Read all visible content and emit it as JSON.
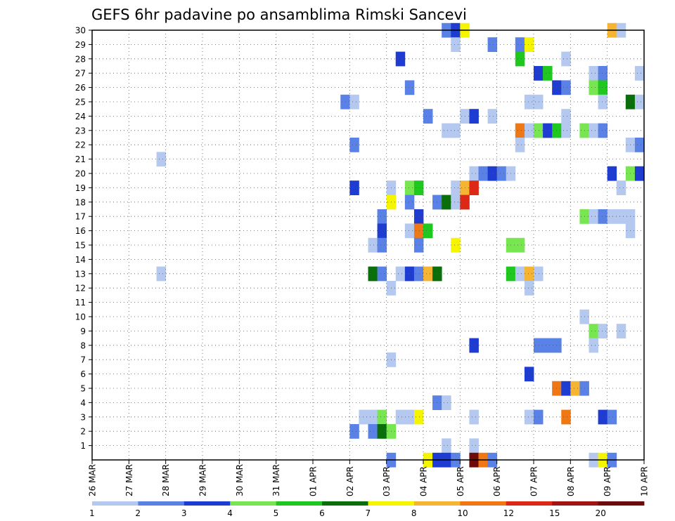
{
  "chart_data": {
    "type": "heatmap",
    "title": "GEFS 6hr padavine po ansamblima Rimski Sancevi",
    "xlabel": "",
    "ylabel": "",
    "x_tick_labels": [
      "26 MAR",
      "27 MAR",
      "28 MAR",
      "29 MAR",
      "30 MAR",
      "31 MAR",
      "01 APR",
      "02 APR",
      "03 APR",
      "04 APR",
      "05 APR",
      "06 APR",
      "07 APR",
      "08 APR",
      "09 APR",
      "10 APR"
    ],
    "y_tick_labels": [
      "1",
      "2",
      "3",
      "4",
      "5",
      "6",
      "7",
      "8",
      "9",
      "10",
      "11",
      "12",
      "13",
      "14",
      "15",
      "16",
      "17",
      "18",
      "19",
      "20",
      "21",
      "22",
      "23",
      "24",
      "25",
      "26",
      "27",
      "28",
      "29",
      "30"
    ],
    "x_range": [
      0,
      60
    ],
    "y_range": [
      0,
      30
    ],
    "x_unit": "6-hour steps from 26 MAR 00Z",
    "grid": true,
    "colorbar": {
      "tick_labels": [
        "1",
        "2",
        "3",
        "4",
        "5",
        "6",
        "7",
        "8",
        "10",
        "12",
        "15",
        "20"
      ],
      "colors": [
        "#b4c8f0",
        "#5a82e6",
        "#1e3cd2",
        "#78e650",
        "#1ec81e",
        "#0a6e0a",
        "#f5f500",
        "#f5b432",
        "#f07814",
        "#dc2814",
        "#a01414",
        "#6e0a0a"
      ]
    },
    "cells": [
      [
        38.5,
        30,
        "#5a82e6"
      ],
      [
        39.5,
        30,
        "#1e3cd2"
      ],
      [
        40.5,
        30,
        "#f5f500"
      ],
      [
        56.5,
        30,
        "#f5b432"
      ],
      [
        57.5,
        30,
        "#b4c8f0"
      ],
      [
        39.5,
        29,
        "#b4c8f0"
      ],
      [
        43.5,
        29,
        "#5a82e6"
      ],
      [
        46.5,
        29,
        "#5a82e6"
      ],
      [
        47.5,
        29,
        "#f5f500"
      ],
      [
        33.5,
        28,
        "#1e3cd2"
      ],
      [
        46.5,
        28,
        "#1ec81e"
      ],
      [
        51.5,
        28,
        "#b4c8f0"
      ],
      [
        48.5,
        27,
        "#1e3cd2"
      ],
      [
        49.5,
        27,
        "#1ec81e"
      ],
      [
        54.5,
        27,
        "#b4c8f0"
      ],
      [
        55.5,
        27,
        "#5a82e6"
      ],
      [
        59.5,
        27,
        "#b4c8f0"
      ],
      [
        34.5,
        26,
        "#5a82e6"
      ],
      [
        50.5,
        26,
        "#1e3cd2"
      ],
      [
        51.5,
        26,
        "#5a82e6"
      ],
      [
        54.5,
        26,
        "#78e650"
      ],
      [
        55.5,
        26,
        "#1ec81e"
      ],
      [
        27.5,
        25,
        "#5a82e6"
      ],
      [
        28.5,
        25,
        "#b4c8f0"
      ],
      [
        47.5,
        25,
        "#b4c8f0"
      ],
      [
        48.5,
        25,
        "#b4c8f0"
      ],
      [
        55.5,
        25,
        "#b4c8f0"
      ],
      [
        58.5,
        25,
        "#0a6e0a"
      ],
      [
        59.5,
        25,
        "#b4c8f0"
      ],
      [
        36.5,
        24,
        "#5a82e6"
      ],
      [
        40.5,
        24,
        "#b4c8f0"
      ],
      [
        41.5,
        24,
        "#1e3cd2"
      ],
      [
        43.5,
        24,
        "#b4c8f0"
      ],
      [
        51.5,
        24,
        "#b4c8f0"
      ],
      [
        38.5,
        23,
        "#b4c8f0"
      ],
      [
        39.5,
        23,
        "#b4c8f0"
      ],
      [
        46.5,
        23,
        "#f07814"
      ],
      [
        47.5,
        23,
        "#b4c8f0"
      ],
      [
        48.5,
        23,
        "#78e650"
      ],
      [
        49.5,
        23,
        "#1e3cd2"
      ],
      [
        50.5,
        23,
        "#1ec81e"
      ],
      [
        51.5,
        23,
        "#b4c8f0"
      ],
      [
        53.5,
        23,
        "#78e650"
      ],
      [
        54.5,
        23,
        "#b4c8f0"
      ],
      [
        55.5,
        23,
        "#5a82e6"
      ],
      [
        28.5,
        22,
        "#5a82e6"
      ],
      [
        46.5,
        22,
        "#b4c8f0"
      ],
      [
        58.5,
        22,
        "#b4c8f0"
      ],
      [
        59.5,
        22,
        "#5a82e6"
      ],
      [
        7.5,
        21,
        "#b4c8f0"
      ],
      [
        41.5,
        20,
        "#b4c8f0"
      ],
      [
        42.5,
        20,
        "#5a82e6"
      ],
      [
        43.5,
        20,
        "#1e3cd2"
      ],
      [
        44.5,
        20,
        "#5a82e6"
      ],
      [
        45.5,
        20,
        "#b4c8f0"
      ],
      [
        56.5,
        20,
        "#1e3cd2"
      ],
      [
        58.5,
        20,
        "#78e650"
      ],
      [
        59.5,
        20,
        "#1e3cd2"
      ],
      [
        28.5,
        19,
        "#1e3cd2"
      ],
      [
        32.5,
        19,
        "#b4c8f0"
      ],
      [
        34.5,
        19,
        "#78e650"
      ],
      [
        35.5,
        19,
        "#1ec81e"
      ],
      [
        39.5,
        19,
        "#b4c8f0"
      ],
      [
        40.5,
        19,
        "#f5b432"
      ],
      [
        41.5,
        19,
        "#dc2814"
      ],
      [
        57.5,
        19,
        "#b4c8f0"
      ],
      [
        32.5,
        18,
        "#f5f500"
      ],
      [
        34.5,
        18,
        "#5a82e6"
      ],
      [
        37.5,
        18,
        "#5a82e6"
      ],
      [
        38.5,
        18,
        "#0a6e0a"
      ],
      [
        39.5,
        18,
        "#b4c8f0"
      ],
      [
        40.5,
        18,
        "#dc2814"
      ],
      [
        31.5,
        17,
        "#5a82e6"
      ],
      [
        35.5,
        17,
        "#1e3cd2"
      ],
      [
        53.5,
        17,
        "#78e650"
      ],
      [
        54.5,
        17,
        "#b4c8f0"
      ],
      [
        55.5,
        17,
        "#5a82e6"
      ],
      [
        56.5,
        17,
        "#b4c8f0"
      ],
      [
        57.5,
        17,
        "#b4c8f0"
      ],
      [
        58.5,
        17,
        "#b4c8f0"
      ],
      [
        31.5,
        16,
        "#1e3cd2"
      ],
      [
        34.5,
        16,
        "#b4c8f0"
      ],
      [
        35.5,
        16,
        "#f07814"
      ],
      [
        36.5,
        16,
        "#1ec81e"
      ],
      [
        58.5,
        16,
        "#b4c8f0"
      ],
      [
        30.5,
        15,
        "#b4c8f0"
      ],
      [
        31.5,
        15,
        "#5a82e6"
      ],
      [
        35.5,
        15,
        "#5a82e6"
      ],
      [
        39.5,
        15,
        "#f5f500"
      ],
      [
        45.5,
        15,
        "#78e650"
      ],
      [
        46.5,
        15,
        "#78e650"
      ],
      [
        7.5,
        13,
        "#b4c8f0"
      ],
      [
        30.5,
        13,
        "#0a6e0a"
      ],
      [
        31.5,
        13,
        "#5a82e6"
      ],
      [
        33.5,
        13,
        "#b4c8f0"
      ],
      [
        34.5,
        13,
        "#1e3cd2"
      ],
      [
        35.5,
        13,
        "#5a82e6"
      ],
      [
        36.5,
        13,
        "#f5b432"
      ],
      [
        37.5,
        13,
        "#0a6e0a"
      ],
      [
        45.5,
        13,
        "#1ec81e"
      ],
      [
        46.5,
        13,
        "#b4c8f0"
      ],
      [
        47.5,
        13,
        "#f5b432"
      ],
      [
        48.5,
        13,
        "#b4c8f0"
      ],
      [
        32.5,
        12,
        "#b4c8f0"
      ],
      [
        47.5,
        12,
        "#b4c8f0"
      ],
      [
        53.5,
        10,
        "#b4c8f0"
      ],
      [
        54.5,
        9,
        "#78e650"
      ],
      [
        55.5,
        9,
        "#b4c8f0"
      ],
      [
        57.5,
        9,
        "#b4c8f0"
      ],
      [
        41.5,
        8,
        "#1e3cd2"
      ],
      [
        48.5,
        8,
        "#5a82e6"
      ],
      [
        49.5,
        8,
        "#5a82e6"
      ],
      [
        50.5,
        8,
        "#5a82e6"
      ],
      [
        54.5,
        8,
        "#b4c8f0"
      ],
      [
        32.5,
        7,
        "#b4c8f0"
      ],
      [
        47.5,
        6,
        "#1e3cd2"
      ],
      [
        50.5,
        5,
        "#f07814"
      ],
      [
        51.5,
        5,
        "#1e3cd2"
      ],
      [
        52.5,
        5,
        "#f5b432"
      ],
      [
        53.5,
        5,
        "#5a82e6"
      ],
      [
        37.5,
        4,
        "#5a82e6"
      ],
      [
        38.5,
        4,
        "#b4c8f0"
      ],
      [
        29.5,
        3,
        "#b4c8f0"
      ],
      [
        30.5,
        3,
        "#b4c8f0"
      ],
      [
        31.5,
        3,
        "#78e650"
      ],
      [
        33.5,
        3,
        "#b4c8f0"
      ],
      [
        34.5,
        3,
        "#b4c8f0"
      ],
      [
        35.5,
        3,
        "#f5f500"
      ],
      [
        41.5,
        3,
        "#b4c8f0"
      ],
      [
        47.5,
        3,
        "#b4c8f0"
      ],
      [
        48.5,
        3,
        "#5a82e6"
      ],
      [
        51.5,
        3,
        "#f07814"
      ],
      [
        55.5,
        3,
        "#1e3cd2"
      ],
      [
        56.5,
        3,
        "#5a82e6"
      ],
      [
        28.5,
        2,
        "#5a82e6"
      ],
      [
        30.5,
        2,
        "#5a82e6"
      ],
      [
        31.5,
        2,
        "#0a6e0a"
      ],
      [
        32.5,
        2,
        "#78e650"
      ],
      [
        38.5,
        1,
        "#b4c8f0"
      ],
      [
        41.5,
        1,
        "#b4c8f0"
      ],
      [
        32.5,
        0,
        "#5a82e6"
      ],
      [
        36.5,
        0,
        "#f5f500"
      ],
      [
        37.5,
        0,
        "#1e3cd2"
      ],
      [
        38.5,
        0,
        "#1e3cd2"
      ],
      [
        39.5,
        0,
        "#5a82e6"
      ],
      [
        41.5,
        0,
        "#6e0a0a"
      ],
      [
        42.5,
        0,
        "#f07814"
      ],
      [
        43.5,
        0,
        "#5a82e6"
      ],
      [
        54.5,
        0,
        "#b4c8f0"
      ],
      [
        55.5,
        0,
        "#f5f500"
      ],
      [
        56.5,
        0,
        "#5a82e6"
      ]
    ]
  }
}
